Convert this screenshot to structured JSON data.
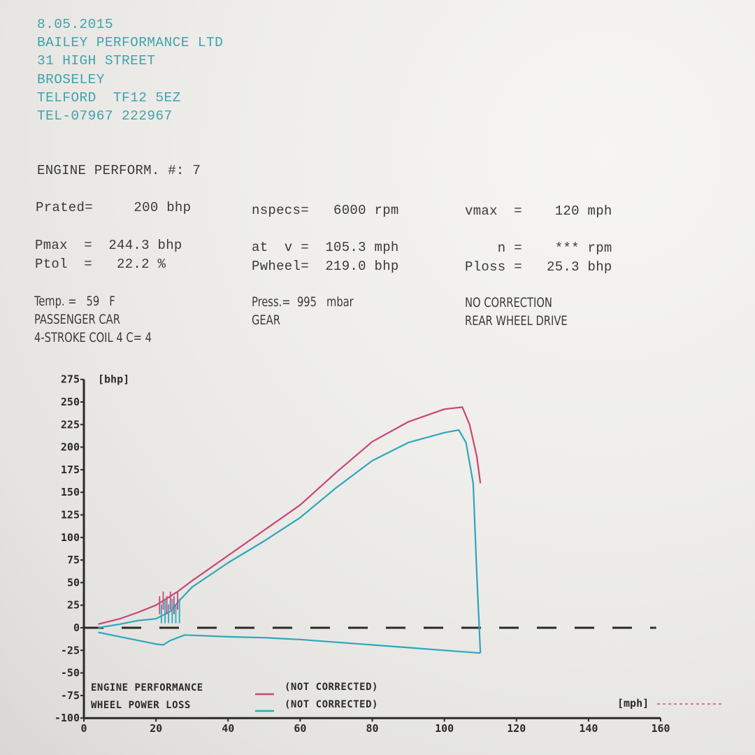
{
  "header": {
    "date": "8.05.2015",
    "company": "BAILEY PERFORMANCE LTD",
    "street": "31 HIGH STREET",
    "town": "BROSELEY",
    "city_postcode": "TELFORD  TF12 5EZ",
    "phone": "TEL-07967 222967"
  },
  "report": {
    "title": "ENGINE PERFORM. #: 7",
    "col1": {
      "prated": "Prated=     200 bhp",
      "pmax": "Pmax  =  244.3 bhp",
      "ptol": "Ptol  =   22.2 %",
      "temp": "Temp. =   59   F",
      "vehicle": "PASSENGER CAR",
      "engine": "4-STROKE COIL 4 C= 4"
    },
    "col2": {
      "nspecs": "nspecs=   6000 rpm",
      "at_v": "at  v =  105.3 mph",
      "pwheel": "Pwheel=  219.0 bhp",
      "press": "Press.=  995   mbar",
      "mode": "GEAR"
    },
    "col3": {
      "vmax": "vmax  =    120 mph",
      "n": "    n =    *** rpm",
      "ploss": "Ploss =   25.3 bhp",
      "correction": "NO CORRECTION",
      "drive": "REAR WHEEL DRIVE"
    }
  },
  "colors": {
    "header_text": "#3fa3b0",
    "engine_curve": "#c8467a",
    "wheel_curve": "#2ea6be",
    "axis": "#2a2a2a"
  },
  "chart_data": {
    "type": "line",
    "title": "",
    "xlabel": "[mph]",
    "ylabel": "[bhp]",
    "xlim": [
      0,
      160
    ],
    "ylim": [
      -100,
      275
    ],
    "x_ticks": [
      "0",
      "20",
      "40",
      "60",
      "80",
      "100",
      "120",
      "140",
      "160"
    ],
    "y_ticks": [
      "275",
      "250",
      "225",
      "200",
      "175",
      "150",
      "125",
      "100",
      "75",
      "50",
      "25",
      "0",
      "-25",
      "-50",
      "-75",
      "-100"
    ],
    "grid": false,
    "zero_line": "dashed",
    "legend_position": "bottom-left inside",
    "legend": [
      {
        "label": "ENGINE PERFORMANCE",
        "qualifier": "(NOT CORRECTED)",
        "color": "#c8467a"
      },
      {
        "label": "WHEEL POWER LOSS",
        "qualifier": "(NOT CORRECTED)",
        "color": "#2ea6be"
      }
    ],
    "series": [
      {
        "name": "ENGINE PERFORMANCE",
        "x": [
          4,
          10,
          15,
          20,
          24,
          26,
          30,
          40,
          50,
          60,
          70,
          80,
          90,
          100,
          105,
          107,
          109,
          110
        ],
        "values": [
          4,
          10,
          17,
          25,
          35,
          40,
          52,
          80,
          108,
          136,
          172,
          206,
          228,
          242,
          244.3,
          225,
          190,
          160
        ]
      },
      {
        "name": "WHEEL POWER",
        "x": [
          4,
          10,
          15,
          20,
          24,
          26,
          30,
          40,
          50,
          60,
          70,
          80,
          90,
          100,
          104,
          106,
          108,
          109,
          110
        ],
        "values": [
          0,
          4,
          8,
          10,
          18,
          28,
          45,
          72,
          96,
          122,
          155,
          185,
          205,
          216,
          219,
          205,
          160,
          60,
          -28
        ]
      },
      {
        "name": "WHEEL POWER LOSS",
        "x": [
          4,
          10,
          15,
          20,
          22,
          24,
          28,
          40,
          50,
          60,
          70,
          80,
          90,
          100,
          110
        ],
        "values": [
          -5,
          -10,
          -14,
          -18,
          -19,
          -14,
          -8,
          -10,
          -11,
          -13,
          -16,
          -19,
          -22,
          -25,
          -28
        ]
      }
    ]
  }
}
